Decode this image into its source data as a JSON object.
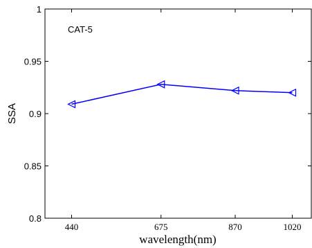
{
  "chart_data": {
    "type": "line",
    "xlabel": "wavelength(nm)",
    "ylabel": "SSA",
    "annotation": "CAT-5",
    "x_ticks": [
      "440",
      "675",
      "870",
      "1020"
    ],
    "y_ticks": [
      "0.8",
      "0.85",
      "0.9",
      "0.95",
      "1"
    ],
    "xlim": [
      370,
      1070
    ],
    "ylim": [
      0.8,
      1.0
    ],
    "series": [
      {
        "x": [
          440,
          675,
          870,
          1020
        ],
        "values": [
          0.909,
          0.928,
          0.922,
          0.92
        ],
        "color": "#0000ff",
        "marker": "triangle-left"
      }
    ],
    "grid": false,
    "legend": "none"
  }
}
